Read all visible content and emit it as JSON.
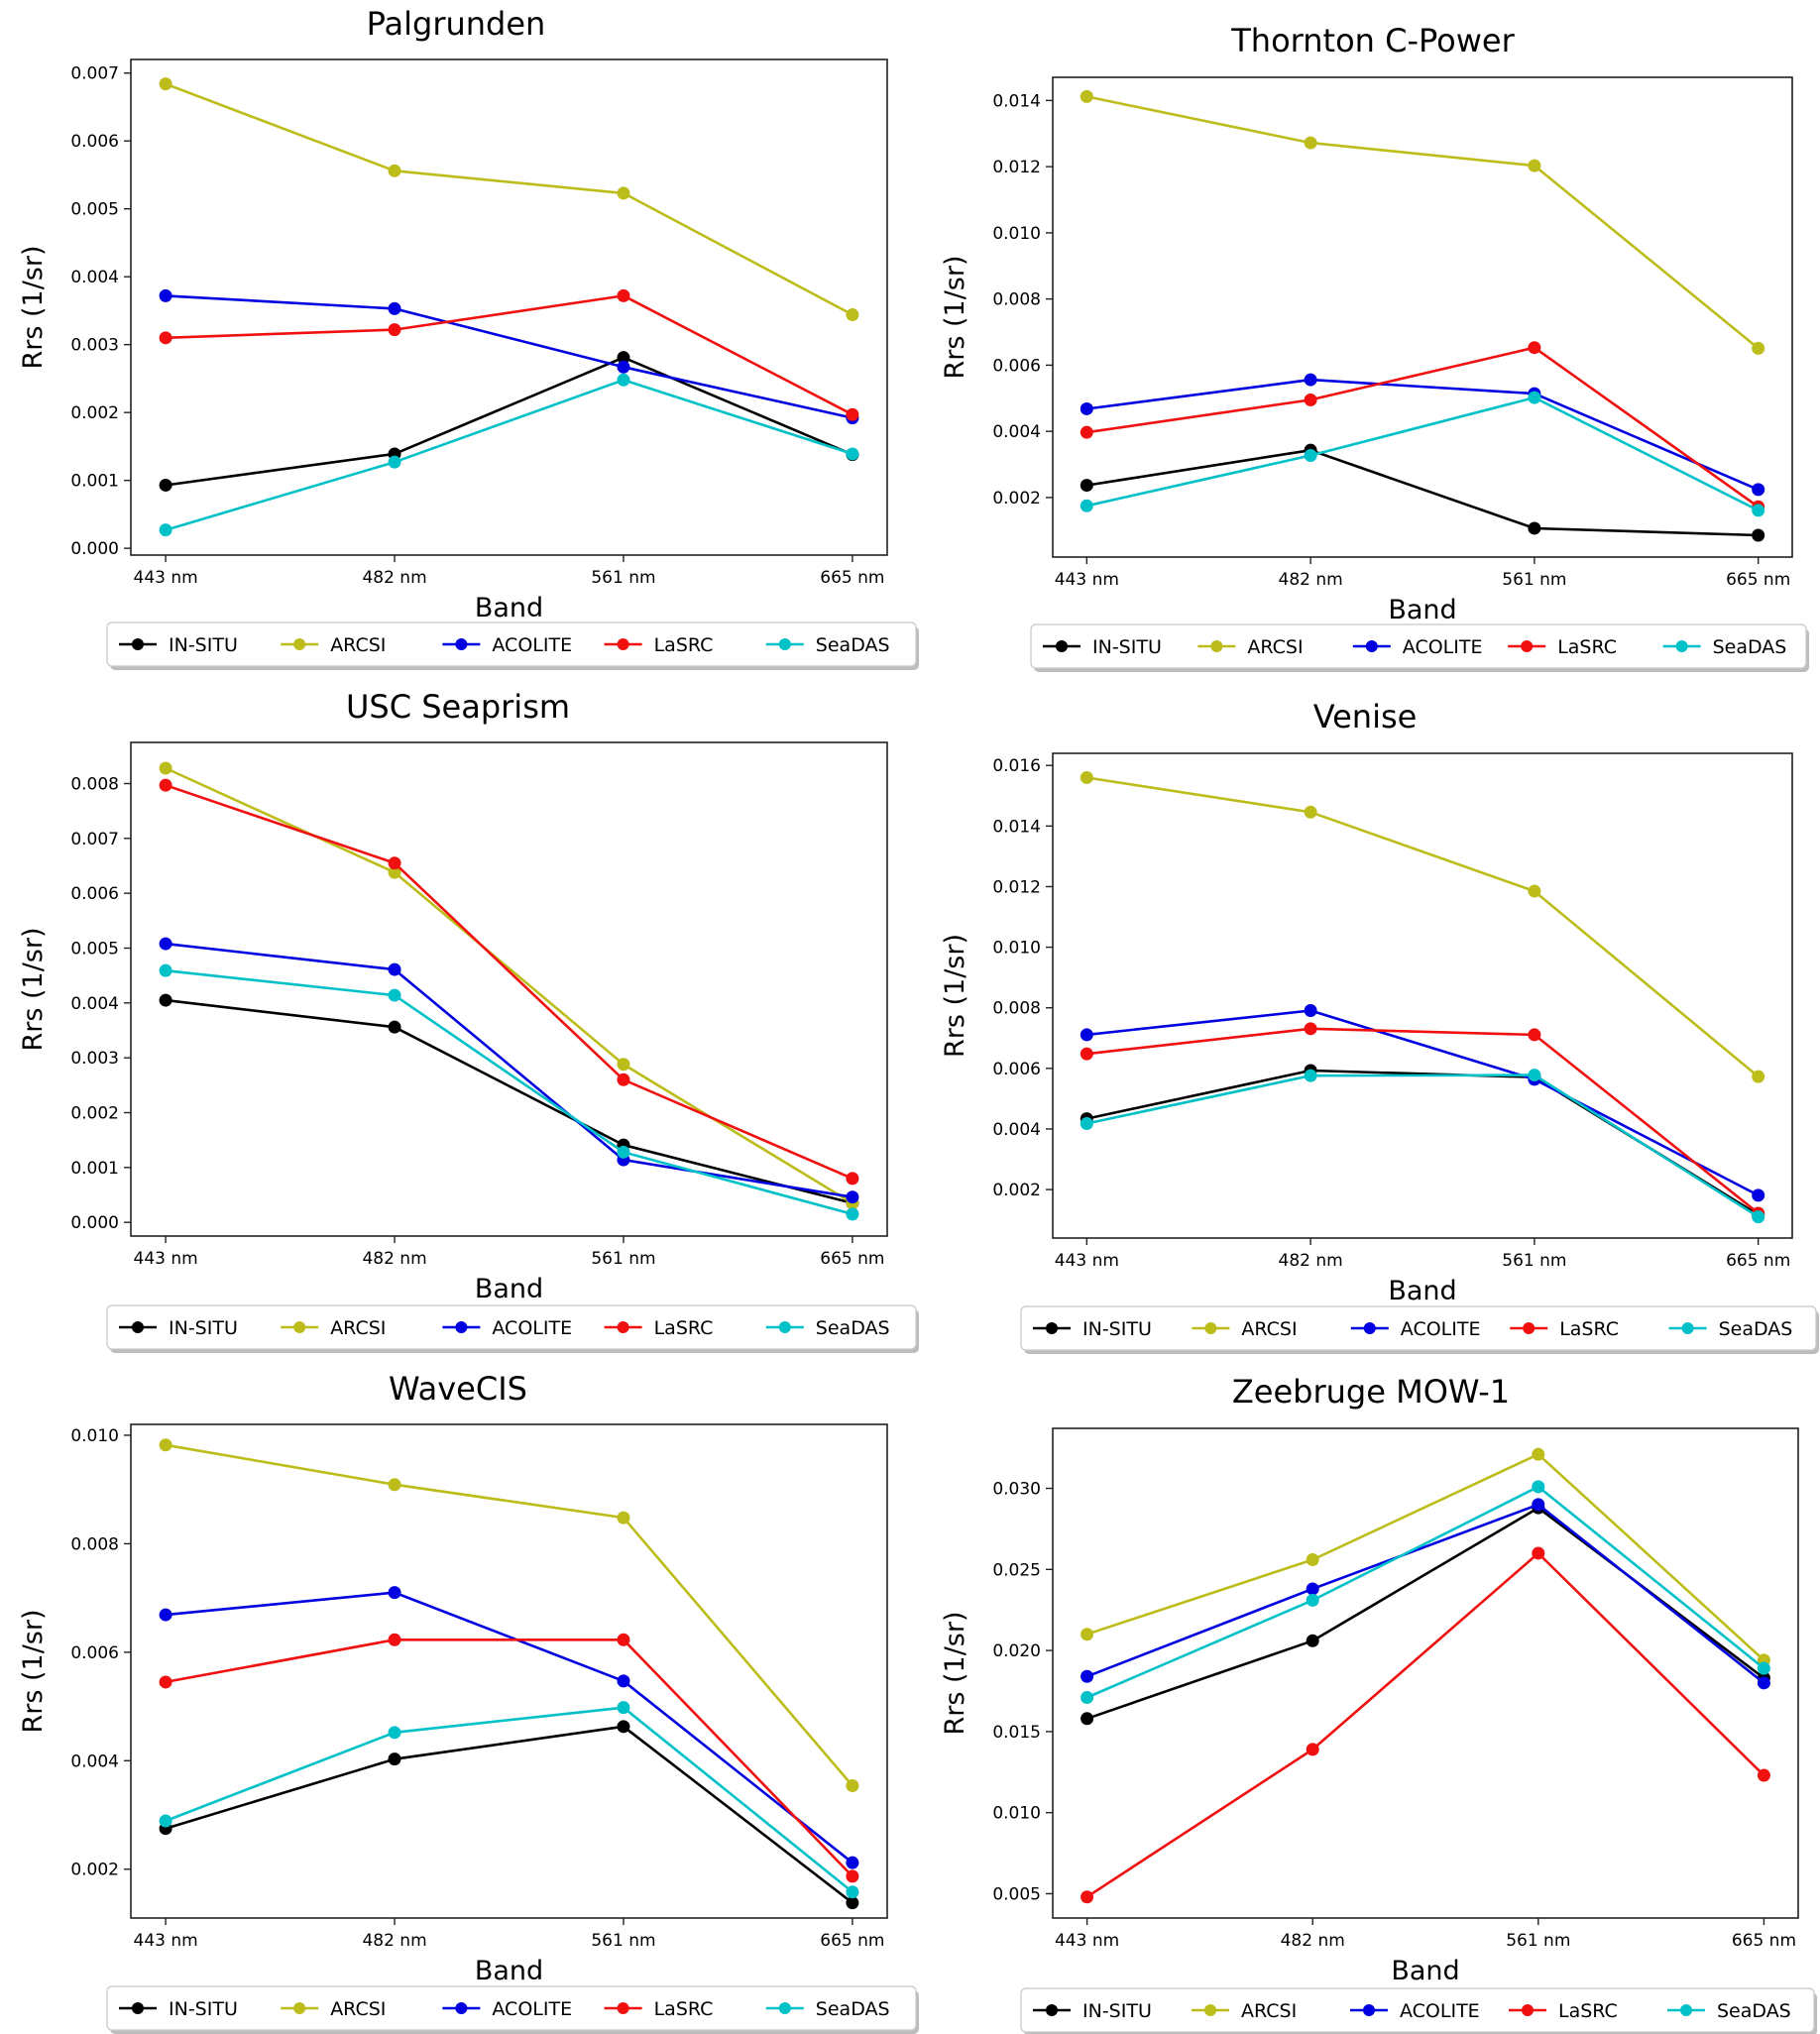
{
  "legend_styles": [
    {
      "name": "IN-SITU",
      "color": "#000000"
    },
    {
      "name": "ARCSI",
      "color": "#bcbc1a"
    },
    {
      "name": "ACOLITE",
      "color": "#0000e0"
    },
    {
      "name": "LaSRC",
      "color": "#f01010"
    },
    {
      "name": "SeaDAS",
      "color": "#00c0c8"
    }
  ],
  "chart_data": [
    {
      "type": "line",
      "title": "Palgrunden",
      "xlabel": "Band",
      "ylabel": "Rrs (1/sr)",
      "categories": [
        "443 nm",
        "482 nm",
        "561 nm",
        "665 nm"
      ],
      "ylim": [
        -0.0001,
        0.0072
      ],
      "yticks": [
        0.0,
        0.001,
        0.002,
        0.003,
        0.004,
        0.005,
        0.006,
        0.007
      ],
      "ytick_labels": [
        "0.000",
        "0.001",
        "0.002",
        "0.003",
        "0.004",
        "0.005",
        "0.006",
        "0.007"
      ],
      "legend": "bottom",
      "series": [
        {
          "name": "IN-SITU",
          "values": [
            0.00093,
            0.00139,
            0.00281,
            0.00138
          ]
        },
        {
          "name": "ARCSI",
          "values": [
            0.00684,
            0.00556,
            0.00523,
            0.00344
          ]
        },
        {
          "name": "ACOLITE",
          "values": [
            0.00372,
            0.00353,
            0.00267,
            0.00192
          ]
        },
        {
          "name": "LaSRC",
          "values": [
            0.0031,
            0.00322,
            0.00372,
            0.00197
          ]
        },
        {
          "name": "SeaDAS",
          "values": [
            0.00027,
            0.00127,
            0.00248,
            0.00139
          ]
        }
      ]
    },
    {
      "type": "line",
      "title": "Thornton C-Power",
      "xlabel": "Band",
      "ylabel": "Rrs (1/sr)",
      "categories": [
        "443 nm",
        "482 nm",
        "561 nm",
        "665 nm"
      ],
      "ylim": [
        0.0002,
        0.0147
      ],
      "yticks": [
        0.002,
        0.004,
        0.006,
        0.008,
        0.01,
        0.012,
        0.014
      ],
      "ytick_labels": [
        "0.002",
        "0.004",
        "0.006",
        "0.008",
        "0.010",
        "0.012",
        "0.014"
      ],
      "legend": "bottom",
      "series": [
        {
          "name": "IN-SITU",
          "values": [
            0.00237,
            0.00343,
            0.00107,
            0.00086
          ]
        },
        {
          "name": "ARCSI",
          "values": [
            0.01412,
            0.01272,
            0.01203,
            0.00651
          ]
        },
        {
          "name": "ACOLITE",
          "values": [
            0.00468,
            0.00556,
            0.00514,
            0.00224
          ]
        },
        {
          "name": "LaSRC",
          "values": [
            0.00397,
            0.00495,
            0.00653,
            0.00172
          ]
        },
        {
          "name": "SeaDAS",
          "values": [
            0.00175,
            0.00327,
            0.00502,
            0.00161
          ]
        }
      ]
    },
    {
      "type": "line",
      "title": "USC Seaprism",
      "xlabel": "Band",
      "ylabel": "Rrs (1/sr)",
      "categories": [
        "443 nm",
        "482 nm",
        "561 nm",
        "665 nm"
      ],
      "ylim": [
        -0.00025,
        0.00875
      ],
      "yticks": [
        0.0,
        0.001,
        0.002,
        0.003,
        0.004,
        0.005,
        0.006,
        0.007,
        0.008
      ],
      "ytick_labels": [
        "0.000",
        "0.001",
        "0.002",
        "0.003",
        "0.004",
        "0.005",
        "0.006",
        "0.007",
        "0.008"
      ],
      "legend": "bottom",
      "series": [
        {
          "name": "IN-SITU",
          "values": [
            0.00405,
            0.00356,
            0.00141,
            0.00035
          ]
        },
        {
          "name": "ARCSI",
          "values": [
            0.00828,
            0.00638,
            0.00288,
            0.00035
          ]
        },
        {
          "name": "ACOLITE",
          "values": [
            0.00508,
            0.00461,
            0.00114,
            0.00046
          ]
        },
        {
          "name": "LaSRC",
          "values": [
            0.00797,
            0.00655,
            0.0026,
            0.0008
          ]
        },
        {
          "name": "SeaDAS",
          "values": [
            0.00459,
            0.00414,
            0.00128,
            0.00015
          ]
        }
      ]
    },
    {
      "type": "line",
      "title": "Venise",
      "xlabel": "Band",
      "ylabel": "Rrs (1/sr)",
      "categories": [
        "443 nm",
        "482 nm",
        "561 nm",
        "665 nm"
      ],
      "ylim": [
        0.0004,
        0.0164
      ],
      "yticks": [
        0.002,
        0.004,
        0.006,
        0.008,
        0.01,
        0.012,
        0.014,
        0.016
      ],
      "ytick_labels": [
        "0.002",
        "0.004",
        "0.006",
        "0.008",
        "0.010",
        "0.012",
        "0.014",
        "0.016"
      ],
      "legend": "bottom",
      "series": [
        {
          "name": "IN-SITU",
          "values": [
            0.00434,
            0.00593,
            0.00571,
            0.00117
          ]
        },
        {
          "name": "ARCSI",
          "values": [
            0.0156,
            0.01446,
            0.01185,
            0.00573
          ]
        },
        {
          "name": "ACOLITE",
          "values": [
            0.00711,
            0.00791,
            0.00564,
            0.00181
          ]
        },
        {
          "name": "LaSRC",
          "values": [
            0.00648,
            0.00731,
            0.00711,
            0.00122
          ]
        },
        {
          "name": "SeaDAS",
          "values": [
            0.00418,
            0.00576,
            0.00578,
            0.0011
          ]
        }
      ]
    },
    {
      "type": "line",
      "title": "WaveCIS",
      "xlabel": "Band",
      "ylabel": "Rrs (1/sr)",
      "categories": [
        "443 nm",
        "482 nm",
        "561 nm",
        "665 nm"
      ],
      "ylim": [
        0.0011,
        0.0102
      ],
      "yticks": [
        0.002,
        0.004,
        0.006,
        0.008,
        0.01
      ],
      "ytick_labels": [
        "0.002",
        "0.004",
        "0.006",
        "0.008",
        "0.010"
      ],
      "legend": "bottom",
      "series": [
        {
          "name": "IN-SITU",
          "values": [
            0.00275,
            0.00403,
            0.00463,
            0.00138
          ]
        },
        {
          "name": "ARCSI",
          "values": [
            0.00982,
            0.00909,
            0.00848,
            0.00354
          ]
        },
        {
          "name": "ACOLITE",
          "values": [
            0.00669,
            0.0071,
            0.00547,
            0.00212
          ]
        },
        {
          "name": "LaSRC",
          "values": [
            0.00545,
            0.00623,
            0.00623,
            0.00187
          ]
        },
        {
          "name": "SeaDAS",
          "values": [
            0.00289,
            0.00452,
            0.00498,
            0.00158
          ]
        }
      ]
    },
    {
      "type": "line",
      "title": "Zeebruge MOW-1",
      "xlabel": "Band",
      "ylabel": "Rrs (1/sr)",
      "categories": [
        "443 nm",
        "482 nm",
        "561 nm",
        "665 nm"
      ],
      "ylim": [
        0.0035,
        0.0337
      ],
      "yticks": [
        0.005,
        0.01,
        0.015,
        0.02,
        0.025,
        0.03
      ],
      "ytick_labels": [
        "0.005",
        "0.010",
        "0.015",
        "0.020",
        "0.025",
        "0.030"
      ],
      "legend": "bottom",
      "series": [
        {
          "name": "IN-SITU",
          "values": [
            0.0158,
            0.0206,
            0.0288,
            0.0183
          ]
        },
        {
          "name": "ARCSI",
          "values": [
            0.021,
            0.0256,
            0.0321,
            0.0194
          ]
        },
        {
          "name": "ACOLITE",
          "values": [
            0.0184,
            0.0238,
            0.029,
            0.018
          ]
        },
        {
          "name": "LaSRC",
          "values": [
            0.0048,
            0.0139,
            0.026,
            0.0123
          ]
        },
        {
          "name": "SeaDAS",
          "values": [
            0.0171,
            0.0231,
            0.0301,
            0.0189
          ]
        }
      ]
    }
  ]
}
